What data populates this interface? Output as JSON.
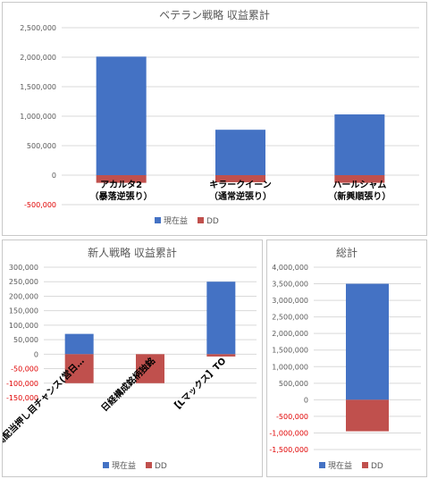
{
  "colors": {
    "profit": "#4472c4",
    "dd": "#c0504d",
    "neg_tick": "#e00000"
  },
  "legend": {
    "profit": "現在益",
    "dd": "DD"
  },
  "chart_data": [
    {
      "type": "bar",
      "title": "ベテラン戦略 収益累計",
      "categories": [
        "アカルタ2\n（暴落逆張り）",
        "キラークイーン\n（通常逆張り）",
        "ハールシャム\n（新興順張り）"
      ],
      "series": [
        {
          "name": "現在益",
          "values": [
            2010000,
            770000,
            1030000
          ]
        },
        {
          "name": "DD",
          "values": [
            -130000,
            -120000,
            -130000
          ]
        }
      ],
      "ylim": [
        -500000,
        2500000
      ],
      "yticks": [
        2500000,
        2000000,
        1500000,
        1000000,
        500000,
        0,
        -500000
      ],
      "ytick_labels": [
        "2,500,000",
        "2,000,000",
        "1,500,000",
        "1,000,000",
        "500,000",
        "0",
        "-500,000"
      ],
      "grid": true,
      "legend": "bottom"
    },
    {
      "type": "bar",
      "title": "新人戦略 収益累計",
      "categories": [
        "高配当押し目チャンス(営日…",
        "日経構成銘柄独銘",
        "【Lマックス】TO"
      ],
      "series": [
        {
          "name": "現在益",
          "values": [
            70000,
            0,
            250000
          ]
        },
        {
          "name": "DD",
          "values": [
            -100000,
            -100000,
            -8000
          ]
        }
      ],
      "ylim": [
        -150000,
        300000
      ],
      "yticks": [
        300000,
        250000,
        200000,
        150000,
        100000,
        50000,
        0,
        -50000,
        -100000,
        -150000
      ],
      "ytick_labels": [
        "300,000",
        "250,000",
        "200,000",
        "150,000",
        "100,000",
        "50,000",
        "0",
        "-50,000",
        "-100,000",
        "-150,000"
      ],
      "grid": true,
      "legend": "bottom"
    },
    {
      "type": "bar",
      "title": "総計",
      "categories": [
        ""
      ],
      "series": [
        {
          "name": "現在益",
          "values": [
            3500000
          ]
        },
        {
          "name": "DD",
          "values": [
            -950000
          ]
        }
      ],
      "ylim": [
        -1500000,
        4000000
      ],
      "yticks": [
        4000000,
        3500000,
        3000000,
        2500000,
        2000000,
        1500000,
        1000000,
        500000,
        0,
        -500000,
        -1000000,
        -1500000
      ],
      "ytick_labels": [
        "4,000,000",
        "3,500,000",
        "3,000,000",
        "2,500,000",
        "2,000,000",
        "1,500,000",
        "1,000,000",
        "500,000",
        "0",
        "-500,000",
        "-1,000,000",
        "-1,500,000"
      ],
      "grid": true,
      "legend": "bottom"
    }
  ]
}
